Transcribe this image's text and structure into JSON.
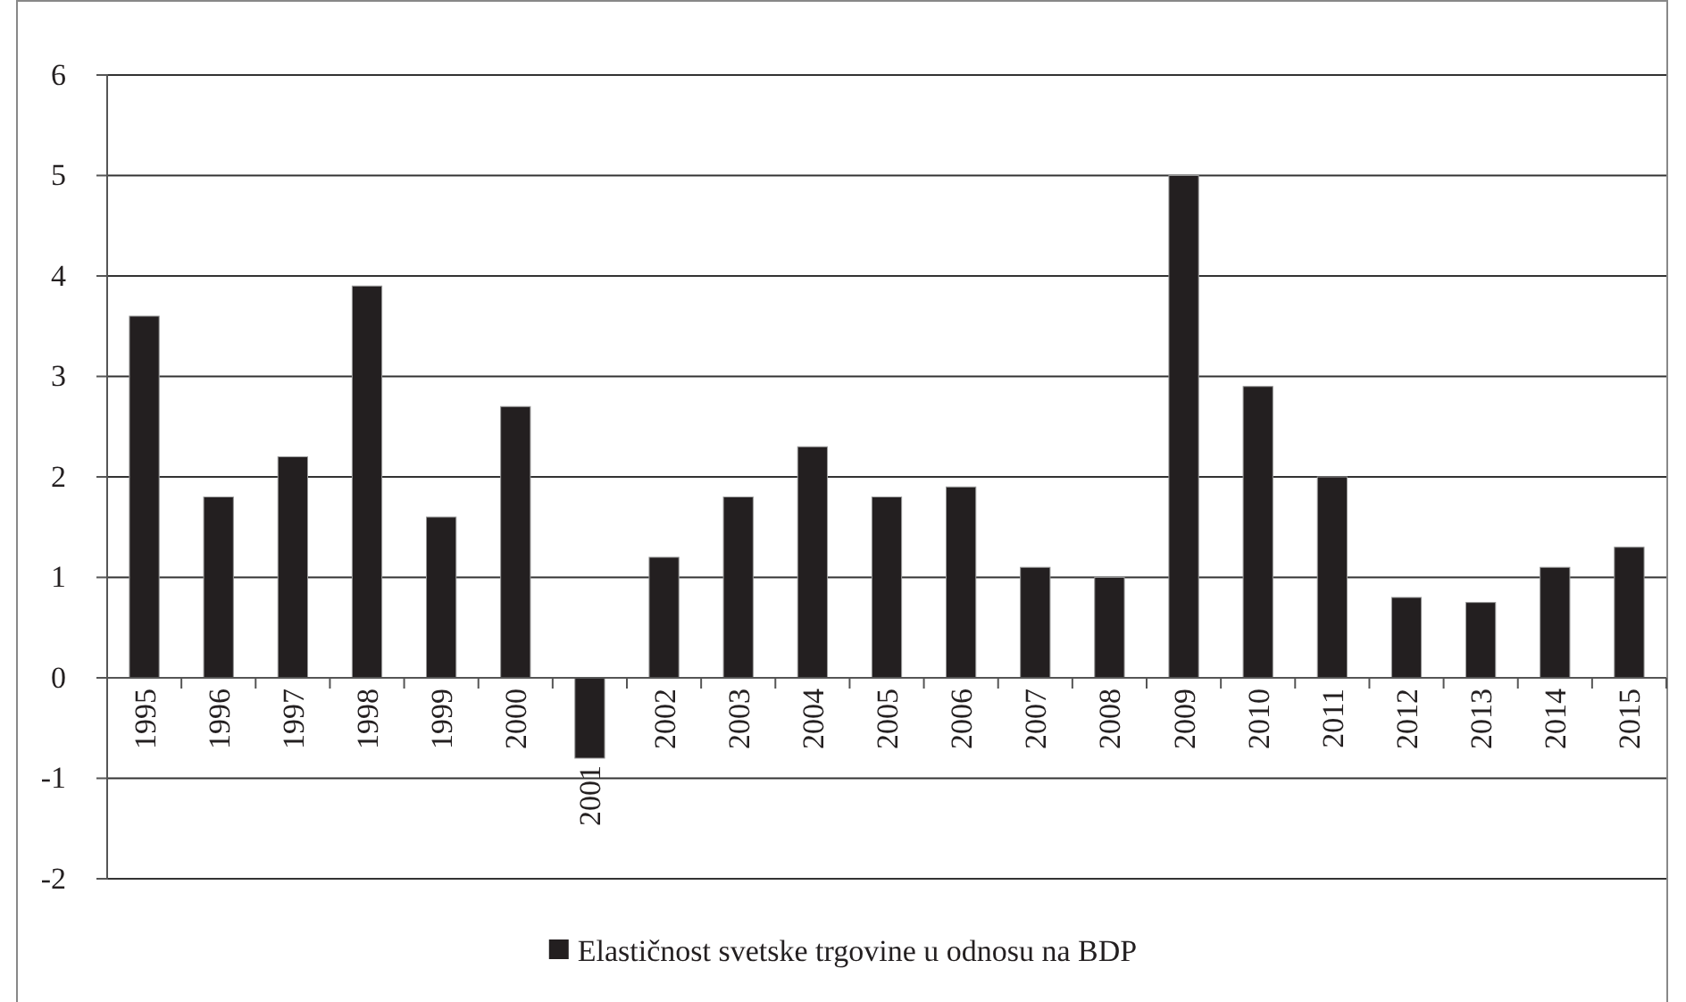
{
  "chart_data": {
    "type": "bar",
    "categories": [
      "1995",
      "1996",
      "1997",
      "1998",
      "1999",
      "2000",
      "2001",
      "2002",
      "2003",
      "2004",
      "2005",
      "2006",
      "2007",
      "2008",
      "2009",
      "2010",
      "2011",
      "2012",
      "2013",
      "2014",
      "2015"
    ],
    "series": [
      {
        "name": "Elastičnost svetske trgovine u odnosu na BDP",
        "color": "#231f20",
        "values": [
          3.6,
          1.8,
          2.2,
          3.9,
          1.6,
          2.7,
          -0.8,
          1.2,
          1.8,
          2.3,
          1.8,
          1.9,
          1.1,
          1.0,
          5.0,
          2.9,
          2.0,
          0.8,
          0.75,
          1.1,
          1.3
        ]
      }
    ],
    "ylim": [
      -2,
      6
    ],
    "yticks": [
      -2,
      -1,
      0,
      1,
      2,
      3,
      4,
      5,
      6
    ],
    "grid": "y",
    "legend": "bottom"
  }
}
